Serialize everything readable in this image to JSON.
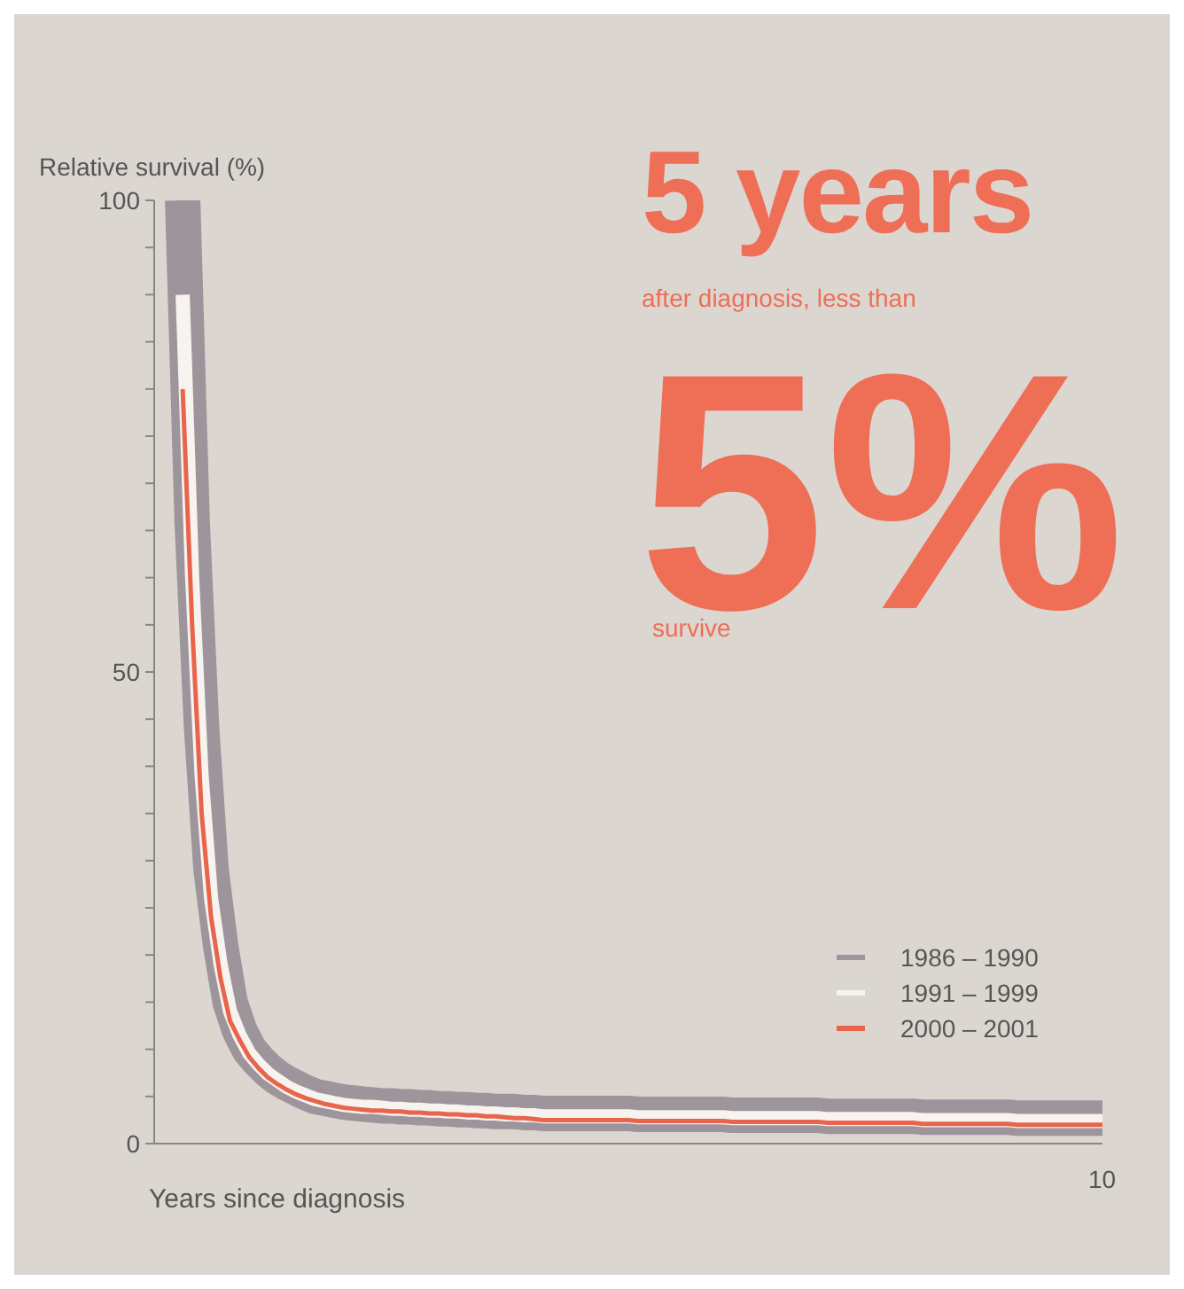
{
  "chart_data": {
    "type": "line",
    "xlabel": "Years since diagnosis",
    "ylabel": "Relative survival (%)",
    "annotations": [
      "5 years",
      "after diagnosis, less than",
      "5%",
      "survive",
      "10"
    ],
    "categories": [
      null,
      null,
      null,
      null,
      null,
      null,
      null,
      null,
      null,
      null,
      null,
      null,
      null,
      null,
      null,
      null,
      null,
      null,
      null,
      null,
      null,
      null,
      null,
      null,
      null,
      null,
      null,
      null,
      null,
      null,
      null,
      null,
      null,
      null,
      null,
      null,
      null,
      null,
      null,
      null,
      null,
      null,
      null,
      null,
      null,
      null,
      null,
      null,
      null,
      null,
      null,
      null,
      null,
      null,
      null,
      null,
      null,
      null,
      null,
      null,
      null,
      null,
      null,
      null,
      null,
      null,
      null,
      null,
      null,
      null,
      null,
      null,
      null,
      null,
      null,
      null,
      null,
      null,
      null,
      null,
      null,
      null,
      null,
      null,
      null,
      null,
      null,
      null,
      null,
      null,
      null,
      null,
      null,
      null,
      null,
      null,
      null,
      null,
      null,
      null,
      null
    ],
    "ylim": [
      0,
      100
    ],
    "yticks": [
      0,
      {
        "value": 5,
        "label": null
      },
      {
        "value": 10,
        "label": null
      },
      {
        "value": 15,
        "label": null
      },
      {
        "value": 20,
        "label": null
      },
      {
        "value": 25,
        "label": null
      },
      {
        "value": 30,
        "label": null
      },
      {
        "value": 35,
        "label": null
      },
      {
        "value": 40,
        "label": null
      },
      {
        "value": 45,
        "label": null
      },
      50,
      {
        "value": 55,
        "label": null
      },
      {
        "value": 60,
        "label": null
      },
      {
        "value": 65,
        "label": null
      },
      {
        "value": 70,
        "label": null
      },
      {
        "value": 75,
        "label": null
      },
      {
        "value": 80,
        "label": null
      },
      {
        "value": 85,
        "label": null
      },
      {
        "value": 90,
        "label": null
      },
      {
        "value": 95,
        "label": null
      },
      100
    ],
    "legend": "bottom right",
    "series": [
      {
        "name": "1986 – 1990",
        "color": "#9d959b",
        "values": [
          null,
          null,
          null,
          100,
          66,
          44,
          29,
          21,
          15,
          12,
          10,
          8.8,
          7.8,
          7,
          6.4,
          5.9,
          5.4,
          5,
          4.8,
          4.6,
          4.4,
          4.3,
          4.2,
          4.1,
          4,
          4,
          3.9,
          3.9,
          3.8,
          3.8,
          3.7,
          3.7,
          3.6,
          3.6,
          3.5,
          3.5,
          3.4,
          3.4,
          3.4,
          3.3,
          3.3,
          3.2,
          3.2,
          3.2,
          3.2,
          3.2,
          3.2,
          3.2,
          3.2,
          3.2,
          3.2,
          3.1,
          3.1,
          3.1,
          3.1,
          3.1,
          3.1,
          3.1,
          3.1,
          3.1,
          3.1,
          3,
          3,
          3,
          3,
          3,
          3,
          3,
          3,
          3,
          3,
          2.9,
          2.9,
          2.9,
          2.9,
          2.9,
          2.9,
          2.9,
          2.9,
          2.9,
          2.9,
          2.8,
          2.8,
          2.8,
          2.8,
          2.8,
          2.8,
          2.8,
          2.8,
          2.8,
          2.8,
          2.7,
          2.7,
          2.7,
          2.7,
          2.7,
          2.7,
          2.7,
          2.7,
          2.7,
          2.7
        ]
      },
      {
        "name": "1991 – 1999",
        "color": "#f7f3ef",
        "values": [
          null,
          null,
          null,
          90,
          60,
          39,
          26,
          19,
          14,
          11.5,
          9.6,
          8.4,
          7.4,
          6.7,
          6,
          5.5,
          5.1,
          4.7,
          4.5,
          4.3,
          4.1,
          4,
          3.9,
          3.9,
          3.8,
          3.7,
          3.7,
          3.6,
          3.6,
          3.5,
          3.5,
          3.4,
          3.4,
          3.3,
          3.3,
          3.2,
          3.2,
          3.1,
          3.1,
          3,
          3,
          2.9,
          2.9,
          2.9,
          2.9,
          2.9,
          2.9,
          2.9,
          2.9,
          2.9,
          2.9,
          2.8,
          2.8,
          2.8,
          2.8,
          2.8,
          2.8,
          2.8,
          2.8,
          2.8,
          2.8,
          2.7,
          2.7,
          2.7,
          2.7,
          2.7,
          2.7,
          2.7,
          2.7,
          2.7,
          2.7,
          2.6,
          2.6,
          2.6,
          2.6,
          2.6,
          2.6,
          2.6,
          2.6,
          2.6,
          2.6,
          2.5,
          2.5,
          2.5,
          2.5,
          2.5,
          2.5,
          2.5,
          2.5,
          2.5,
          2.5,
          2.4,
          2.4,
          2.4,
          2.4,
          2.4,
          2.4,
          2.4,
          2.4,
          2.4,
          2.4
        ]
      },
      {
        "name": "2000 – 2001",
        "color": "#e8644c",
        "values": [
          null,
          null,
          null,
          80,
          55,
          35,
          24,
          17.5,
          13,
          11,
          9.2,
          8,
          7,
          6.3,
          5.7,
          5.2,
          4.8,
          4.5,
          4.2,
          4,
          3.8,
          3.7,
          3.6,
          3.5,
          3.5,
          3.4,
          3.4,
          3.3,
          3.3,
          3.2,
          3.2,
          3.1,
          3.1,
          3,
          3,
          2.9,
          2.9,
          2.8,
          2.7,
          2.7,
          2.6,
          2.5,
          2.5,
          2.5,
          2.5,
          2.5,
          2.5,
          2.5,
          2.5,
          2.5,
          2.5,
          2.4,
          2.4,
          2.4,
          2.4,
          2.4,
          2.4,
          2.4,
          2.4,
          2.4,
          2.4,
          2.3,
          2.3,
          2.3,
          2.3,
          2.3,
          2.3,
          2.3,
          2.3,
          2.3,
          2.3,
          2.2,
          2.2,
          2.2,
          2.2,
          2.2,
          2.2,
          2.2,
          2.2,
          2.2,
          2.2,
          2.1,
          2.1,
          2.1,
          2.1,
          2.1,
          2.1,
          2.1,
          2.1,
          2.1,
          2.1,
          2,
          2,
          2,
          2,
          2,
          2,
          2,
          2,
          2,
          2
        ]
      }
    ]
  }
}
